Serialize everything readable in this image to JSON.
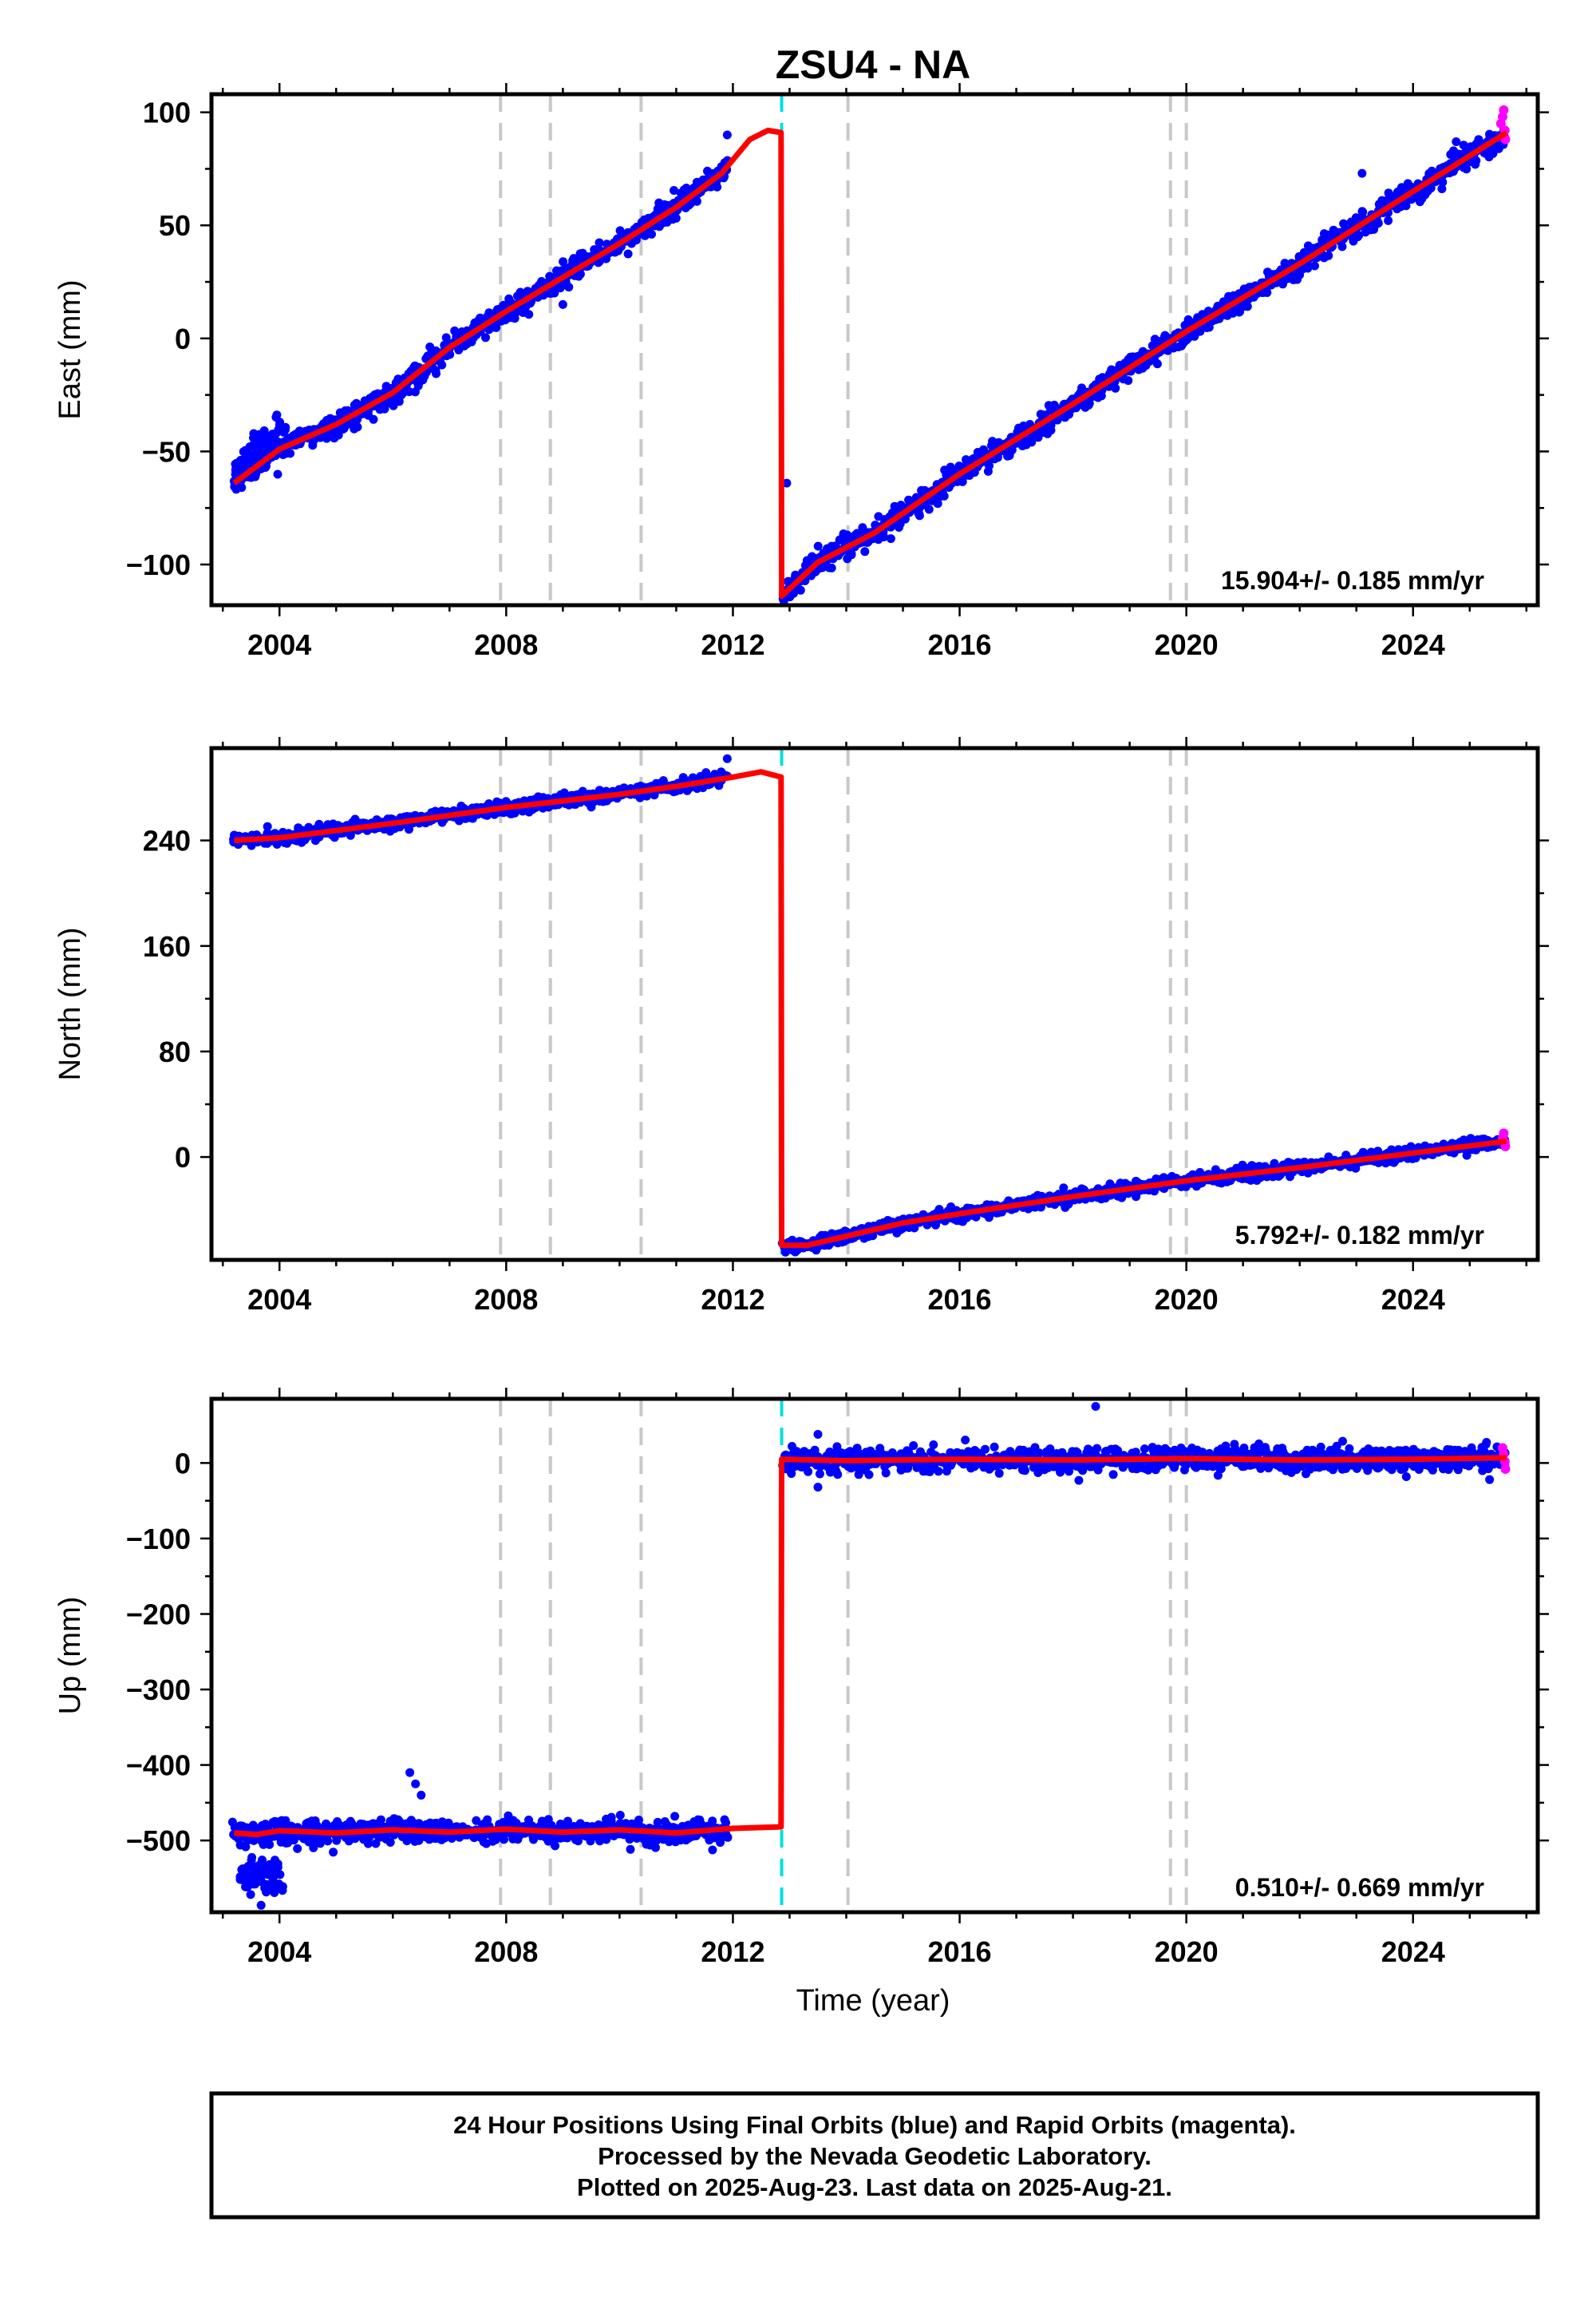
{
  "chart_data": {
    "type": "scatter",
    "title": "ZSU4 - NA",
    "xlabel": "Time (year)",
    "x_ticks": [
      2004,
      2008,
      2012,
      2016,
      2020,
      2024
    ],
    "xlim": [
      2002.8,
      2026.2
    ],
    "equipment_changes": [
      2007.9,
      2008.78,
      2010.38,
      2014.03,
      2019.72,
      2020.0
    ],
    "earthquake": 2012.86,
    "colors": {
      "observations": "#0000ff",
      "rapid_orbits": "#ff00ff",
      "model": "#ff0000",
      "earthquake": "#00e0e0",
      "equipment": "#c8c8c8"
    },
    "grid": false,
    "panels": [
      {
        "name": "East",
        "ylabel": "East (mm)",
        "ylim": [
          -118,
          108
        ],
        "y_ticks": [
          "100",
          "50",
          "0",
          "−50",
          "−100"
        ],
        "y_tick_values": [
          100,
          50,
          0,
          -50,
          -100
        ],
        "rate": "15.904+/- 0.185 mm/yr",
        "model": [
          [
            2003.2,
            -64
          ],
          [
            2004.0,
            -49
          ],
          [
            2005.0,
            -38
          ],
          [
            2006.0,
            -24
          ],
          [
            2007.0,
            -4
          ],
          [
            2008.0,
            12
          ],
          [
            2009.0,
            27
          ],
          [
            2010.0,
            42
          ],
          [
            2011.0,
            58
          ],
          [
            2011.8,
            73
          ],
          [
            2012.3,
            88
          ],
          [
            2012.62,
            92
          ],
          [
            2012.85,
            91
          ],
          [
            2012.86,
            -114
          ],
          [
            2013.5,
            -99
          ],
          [
            2014.5,
            -86
          ],
          [
            2016.0,
            -60
          ],
          [
            2018.0,
            -29
          ],
          [
            2020.0,
            3
          ],
          [
            2022.0,
            33
          ],
          [
            2024.0,
            65
          ],
          [
            2025.65,
            91
          ]
        ],
        "observed_span": [
          [
            2003.2,
            2011.9
          ],
          [
            2012.88,
            2025.62
          ]
        ],
        "scatter_sd": 2.6,
        "rapid": [
          [
            2025.55,
            95
          ],
          [
            2025.58,
            98
          ],
          [
            2025.6,
            101
          ],
          [
            2025.62,
            92
          ],
          [
            2025.63,
            88
          ]
        ],
        "outliers": [
          [
            2009.0,
            15
          ],
          [
            2011.9,
            90
          ],
          [
            2012.95,
            -64
          ],
          [
            2023.1,
            73
          ]
        ],
        "offset_clusters": [
          {
            "x0": 2003.2,
            "x1": 2004.1,
            "dy": 10
          }
        ]
      },
      {
        "name": "North",
        "ylabel": "North (mm)",
        "ylim": [
          -78,
          310
        ],
        "y_ticks": [
          "240",
          "160",
          "80",
          "0"
        ],
        "y_tick_values": [
          240,
          160,
          80,
          0
        ],
        "rate": "5.792+/- 0.182 mm/yr",
        "model": [
          [
            2003.2,
            240
          ],
          [
            2004.0,
            242
          ],
          [
            2006.0,
            253
          ],
          [
            2008.0,
            265
          ],
          [
            2009.0,
            270
          ],
          [
            2010.0,
            275
          ],
          [
            2011.0,
            281
          ],
          [
            2012.0,
            288
          ],
          [
            2012.5,
            292
          ],
          [
            2012.85,
            288
          ],
          [
            2012.86,
            -67
          ],
          [
            2013.3,
            -67
          ],
          [
            2014.0,
            -60
          ],
          [
            2015.0,
            -50
          ],
          [
            2016.0,
            -43
          ],
          [
            2018.0,
            -30
          ],
          [
            2020.0,
            -18
          ],
          [
            2022.0,
            -8
          ],
          [
            2024.0,
            3
          ],
          [
            2025.65,
            12
          ]
        ],
        "observed_span": [
          [
            2003.2,
            2011.9
          ],
          [
            2012.88,
            2025.62
          ]
        ],
        "scatter_sd": 2.4,
        "rapid": [
          [
            2025.58,
            14
          ],
          [
            2025.6,
            18
          ],
          [
            2025.62,
            11
          ],
          [
            2025.63,
            8
          ]
        ],
        "outliers": [
          [
            2011.9,
            302
          ],
          [
            2013.1,
            -72
          ]
        ],
        "offset_clusters": []
      },
      {
        "name": "Up",
        "ylabel": "Up (mm)",
        "ylim": [
          -595,
          85
        ],
        "y_ticks": [
          "0",
          "−100",
          "−200",
          "−300",
          "−400",
          "−500"
        ],
        "y_tick_values": [
          0,
          -100,
          -200,
          -300,
          -400,
          -500
        ],
        "rate": "0.510+/- 0.669 mm/yr",
        "model": [
          [
            2003.2,
            -490
          ],
          [
            2003.6,
            -492
          ],
          [
            2004.0,
            -487
          ],
          [
            2005.0,
            -490
          ],
          [
            2006.0,
            -486
          ],
          [
            2007.0,
            -489
          ],
          [
            2008.0,
            -485
          ],
          [
            2009.0,
            -489
          ],
          [
            2010.0,
            -486
          ],
          [
            2011.0,
            -490
          ],
          [
            2012.0,
            -484
          ],
          [
            2012.85,
            -482
          ],
          [
            2012.86,
            5
          ],
          [
            2014.0,
            3
          ],
          [
            2016.0,
            5
          ],
          [
            2018.0,
            4
          ],
          [
            2020.0,
            6
          ],
          [
            2022.0,
            4
          ],
          [
            2024.0,
            5
          ],
          [
            2025.65,
            7
          ]
        ],
        "observed_span": [
          [
            2003.2,
            2011.9
          ],
          [
            2012.88,
            2025.62
          ]
        ],
        "scatter_sd": 7.5,
        "rapid": [
          [
            2025.58,
            20
          ],
          [
            2025.6,
            12
          ],
          [
            2025.62,
            2
          ],
          [
            2025.63,
            -8
          ]
        ],
        "outliers": [
          [
            2006.3,
            -410
          ],
          [
            2006.4,
            -425
          ],
          [
            2006.5,
            -440
          ],
          [
            2013.5,
            38
          ],
          [
            2013.5,
            -32
          ],
          [
            2018.4,
            75
          ],
          [
            2025.35,
            -22
          ]
        ],
        "offset_clusters": [
          {
            "x0": 2003.3,
            "x1": 2004.05,
            "dy": -75
          }
        ]
      }
    ],
    "footer": [
      "24 Hour Positions Using Final Orbits (blue) and Rapid Orbits (magenta).",
      "Processed by the Nevada Geodetic Laboratory.",
      "Plotted on 2025-Aug-23. Last data on 2025-Aug-21."
    ]
  }
}
